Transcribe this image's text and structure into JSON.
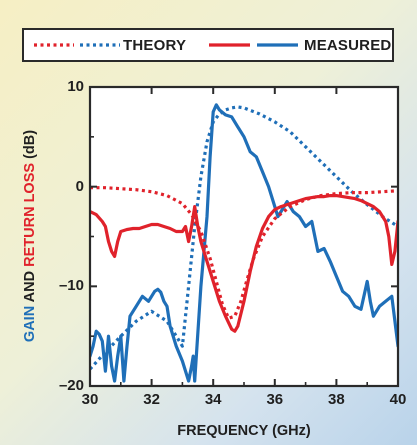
{
  "chart_data": {
    "type": "line",
    "xlabel": "FREQUENCY (GHz)",
    "ylabel_parts": [
      {
        "text": "GAIN",
        "color": "#1f6fb8"
      },
      {
        "text": " AND ",
        "color": "#1f1f1f"
      },
      {
        "text": "RETURN LOSS",
        "color": "#e0222b"
      },
      {
        "text": " (dB)",
        "color": "#1f1f1f"
      }
    ],
    "xlim": [
      30,
      40
    ],
    "ylim": [
      -20,
      10
    ],
    "x_ticks": [
      30,
      32,
      34,
      36,
      38,
      40
    ],
    "y_ticks": [
      -20,
      -10,
      0,
      10
    ],
    "y_tick_labels": [
      "–20",
      "–10",
      "0",
      "10"
    ],
    "legend": {
      "placement": "top",
      "line_styles": [
        {
          "label": "THEORY",
          "style": "dotted"
        },
        {
          "label": "MEASURED",
          "style": "solid"
        }
      ]
    },
    "colors": {
      "gain": "#1f6fb8",
      "return_loss": "#e0222b"
    },
    "series": [
      {
        "role": "gain",
        "style": "dotted",
        "x": [
          30.0,
          30.5,
          31.0,
          31.5,
          32.0,
          32.5,
          33.0,
          33.2,
          33.4,
          33.6,
          33.8,
          34.0,
          34.2,
          34.4,
          34.6,
          34.8,
          35.0,
          35.5,
          36.0,
          36.5,
          37.0,
          37.5,
          38.0,
          38.5,
          39.0,
          39.5,
          40.0
        ],
        "y": [
          -18.3,
          -16.6,
          -15.0,
          -13.5,
          -12.5,
          -13.5,
          -16.0,
          -10.0,
          -4.0,
          1.0,
          4.5,
          6.5,
          7.3,
          7.7,
          7.9,
          8.0,
          7.9,
          7.3,
          6.5,
          5.5,
          4.0,
          2.5,
          1.0,
          -0.5,
          -1.8,
          -3.0,
          -4.0
        ]
      },
      {
        "role": "gain",
        "style": "solid",
        "x": [
          30.0,
          30.1,
          30.2,
          30.3,
          30.4,
          30.5,
          30.6,
          30.7,
          30.8,
          30.9,
          31.0,
          31.1,
          31.2,
          31.3,
          31.5,
          31.7,
          31.9,
          32.0,
          32.1,
          32.2,
          32.3,
          32.4,
          32.5,
          32.6,
          32.8,
          33.0,
          33.2,
          33.3,
          33.35,
          33.4,
          33.6,
          33.8,
          33.9,
          34.0,
          34.1,
          34.2,
          34.4,
          34.6,
          34.8,
          35.0,
          35.2,
          35.4,
          35.6,
          35.8,
          36.0,
          36.1,
          36.2,
          36.4,
          36.6,
          36.8,
          37.0,
          37.2,
          37.4,
          37.6,
          37.8,
          38.0,
          38.2,
          38.4,
          38.6,
          38.8,
          39.0,
          39.1,
          39.2,
          39.4,
          39.6,
          39.8,
          40.0
        ],
        "y": [
          -17.0,
          -16.0,
          -14.5,
          -14.8,
          -15.5,
          -18.5,
          -15.0,
          -18.0,
          -19.5,
          -17.0,
          -15.0,
          -19.5,
          -16.0,
          -13.0,
          -12.0,
          -11.0,
          -11.5,
          -11.0,
          -10.5,
          -10.3,
          -10.6,
          -11.5,
          -12.0,
          -14.0,
          -16.0,
          -17.5,
          -19.5,
          -18.0,
          -17.0,
          -19.5,
          -10.0,
          -3.0,
          3.0,
          7.5,
          8.2,
          7.7,
          7.2,
          7.0,
          6.0,
          5.0,
          3.5,
          3.0,
          1.5,
          0.0,
          -2.0,
          -3.0,
          -2.5,
          -1.5,
          -2.5,
          -3.0,
          -4.0,
          -3.5,
          -6.5,
          -6.2,
          -7.5,
          -9.0,
          -10.5,
          -11.0,
          -12.0,
          -12.3,
          -9.5,
          -11.5,
          -13.0,
          -12.0,
          -11.5,
          -11.0,
          -16.0
        ]
      },
      {
        "role": "return_loss",
        "style": "dotted",
        "x": [
          30.0,
          30.5,
          31.0,
          31.5,
          32.0,
          32.5,
          33.0,
          33.3,
          33.6,
          33.9,
          34.1,
          34.3,
          34.5,
          34.7,
          34.9,
          35.1,
          35.3,
          35.6,
          36.0,
          36.5,
          37.0,
          37.5,
          38.0,
          38.5,
          39.0,
          39.5,
          40.0
        ],
        "y": [
          -0.1,
          -0.1,
          -0.2,
          -0.3,
          -0.5,
          -0.9,
          -1.7,
          -2.8,
          -4.5,
          -7.2,
          -9.5,
          -11.8,
          -13.2,
          -13.0,
          -11.5,
          -9.3,
          -7.3,
          -5.0,
          -3.2,
          -2.0,
          -1.3,
          -0.9,
          -0.7,
          -0.6,
          -0.6,
          -0.5,
          -0.4
        ]
      },
      {
        "role": "return_loss",
        "style": "solid",
        "x": [
          30.0,
          30.2,
          30.4,
          30.5,
          30.6,
          30.7,
          30.8,
          30.9,
          31.0,
          31.2,
          31.4,
          31.6,
          31.8,
          32.0,
          32.2,
          32.4,
          32.6,
          32.8,
          33.0,
          33.1,
          33.2,
          33.3,
          33.4,
          33.5,
          33.6,
          33.8,
          34.0,
          34.2,
          34.4,
          34.6,
          34.7,
          34.8,
          35.0,
          35.2,
          35.4,
          35.6,
          35.8,
          36.0,
          36.2,
          36.4,
          36.6,
          36.8,
          37.0,
          37.2,
          37.4,
          37.6,
          37.8,
          38.0,
          38.2,
          38.4,
          38.6,
          38.8,
          39.0,
          39.2,
          39.4,
          39.6,
          39.7,
          39.8,
          39.9,
          40.0
        ],
        "y": [
          -2.5,
          -2.8,
          -3.5,
          -4.0,
          -5.5,
          -6.5,
          -7.0,
          -5.5,
          -4.5,
          -4.3,
          -4.2,
          -4.2,
          -4.0,
          -3.8,
          -3.8,
          -4.0,
          -4.2,
          -4.5,
          -4.5,
          -4.0,
          -5.5,
          -4.0,
          -2.0,
          -4.0,
          -5.5,
          -7.5,
          -9.5,
          -11.5,
          -13.0,
          -14.3,
          -14.5,
          -14.0,
          -11.5,
          -8.5,
          -6.0,
          -4.2,
          -3.0,
          -2.3,
          -2.0,
          -1.8,
          -1.6,
          -1.4,
          -1.2,
          -1.1,
          -1.0,
          -1.0,
          -0.9,
          -0.9,
          -1.0,
          -1.1,
          -1.2,
          -1.4,
          -1.7,
          -2.0,
          -2.5,
          -3.5,
          -5.0,
          -7.8,
          -6.5,
          -3.5
        ]
      }
    ]
  }
}
